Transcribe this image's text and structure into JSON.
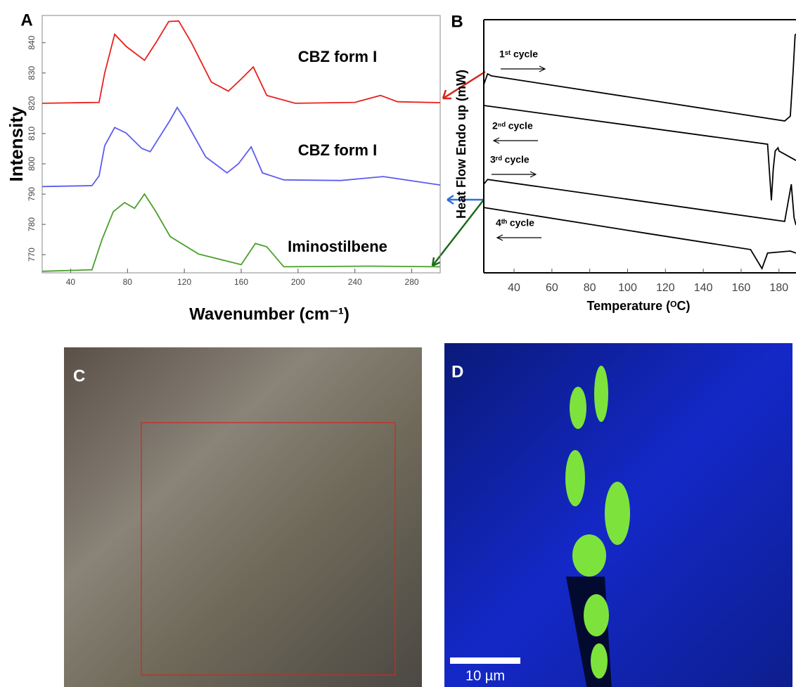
{
  "chart_data": [
    {
      "type": "line",
      "label": "A",
      "xlabel": "Wavenumber (cm⁻¹)",
      "ylabel": "Intensity",
      "xlim": [
        20,
        300
      ],
      "ylim": [
        764,
        849
      ],
      "xticks": [
        40,
        80,
        120,
        160,
        200,
        240,
        280
      ],
      "yticks": [
        770,
        780,
        790,
        800,
        810,
        820,
        830,
        840
      ],
      "series": [
        {
          "name": "CBZ form I",
          "color": "#e8211d",
          "x": [
            20,
            60,
            64,
            71,
            79,
            92,
            100,
            109,
            116,
            125,
            139,
            151,
            160,
            168.5,
            178,
            198,
            240,
            258,
            270,
            300
          ],
          "values": [
            820,
            820.3,
            830,
            842.8,
            838.8,
            834.2,
            840,
            847,
            847.2,
            840,
            827,
            824,
            828,
            832,
            822.6,
            820,
            820.3,
            822.6,
            820.5,
            820.2
          ]
        },
        {
          "name": "CBZ form I",
          "color": "#5d5cf0",
          "x": [
            20,
            55,
            60,
            64,
            71,
            79,
            90,
            96,
            110,
            115,
            120,
            135,
            150,
            158,
            167,
            175,
            190,
            230,
            260,
            300
          ],
          "values": [
            792.5,
            792.8,
            796,
            806,
            812,
            810.2,
            805.1,
            804,
            814.4,
            818.6,
            815,
            802.3,
            797,
            800,
            805.6,
            797,
            794.7,
            794.5,
            795.8,
            793
          ]
        },
        {
          "name": "Iminostilbene",
          "color": "#4aa02c",
          "x": [
            20,
            55,
            62,
            70,
            78,
            85,
            92,
            100,
            110,
            130,
            160,
            170,
            178,
            190,
            250,
            300
          ],
          "values": [
            764.5,
            765,
            774.9,
            784.2,
            787.2,
            785.3,
            790,
            784.2,
            776,
            770.2,
            766.7,
            773.7,
            772.6,
            766,
            766.2,
            766
          ]
        }
      ]
    },
    {
      "type": "line",
      "label": "B",
      "xlabel": "Temperature (ᴼC)",
      "ylabel": "Heat Flow Endo up (mW)",
      "xlim": [
        24,
        189
      ],
      "ylim": [
        0,
        100
      ],
      "xticks": [
        40,
        60,
        80,
        100,
        120,
        140,
        160,
        180
      ],
      "series": [
        {
          "name": "1ˢᵗ cycle",
          "color": "#000000",
          "x": [
            24,
            26,
            28,
            183,
            186,
            187.5,
            188.5,
            189
          ],
          "values": [
            74.4,
            78.6,
            77.8,
            60,
            61.9,
            80,
            93.9,
            94.4
          ]
        },
        {
          "name": "2ⁿᵈ cycle",
          "color": "#000000",
          "x": [
            24,
            174,
            176,
            177,
            178,
            179.5,
            180,
            189
          ],
          "values": [
            66.1,
            50.8,
            28.6,
            41.1,
            48.1,
            49.4,
            48.1,
            44.4
          ]
        },
        {
          "name": "3ʳᵈ cycle",
          "color": "#000000",
          "x": [
            24,
            26,
            183,
            186.5,
            188,
            189
          ],
          "values": [
            35,
            36.9,
            20.3,
            35,
            21.7,
            18.9
          ]
        },
        {
          "name": "4ᵗʰ cycle",
          "color": "#000000",
          "x": [
            24,
            110,
            165,
            171,
            174,
            186,
            189
          ],
          "values": [
            25.8,
            15.6,
            9.2,
            1.7,
            7.8,
            8.6,
            7.8
          ]
        }
      ]
    }
  ],
  "images": [
    {
      "label": "C"
    },
    {
      "label": "D",
      "scale_bar": "10 µm"
    }
  ]
}
